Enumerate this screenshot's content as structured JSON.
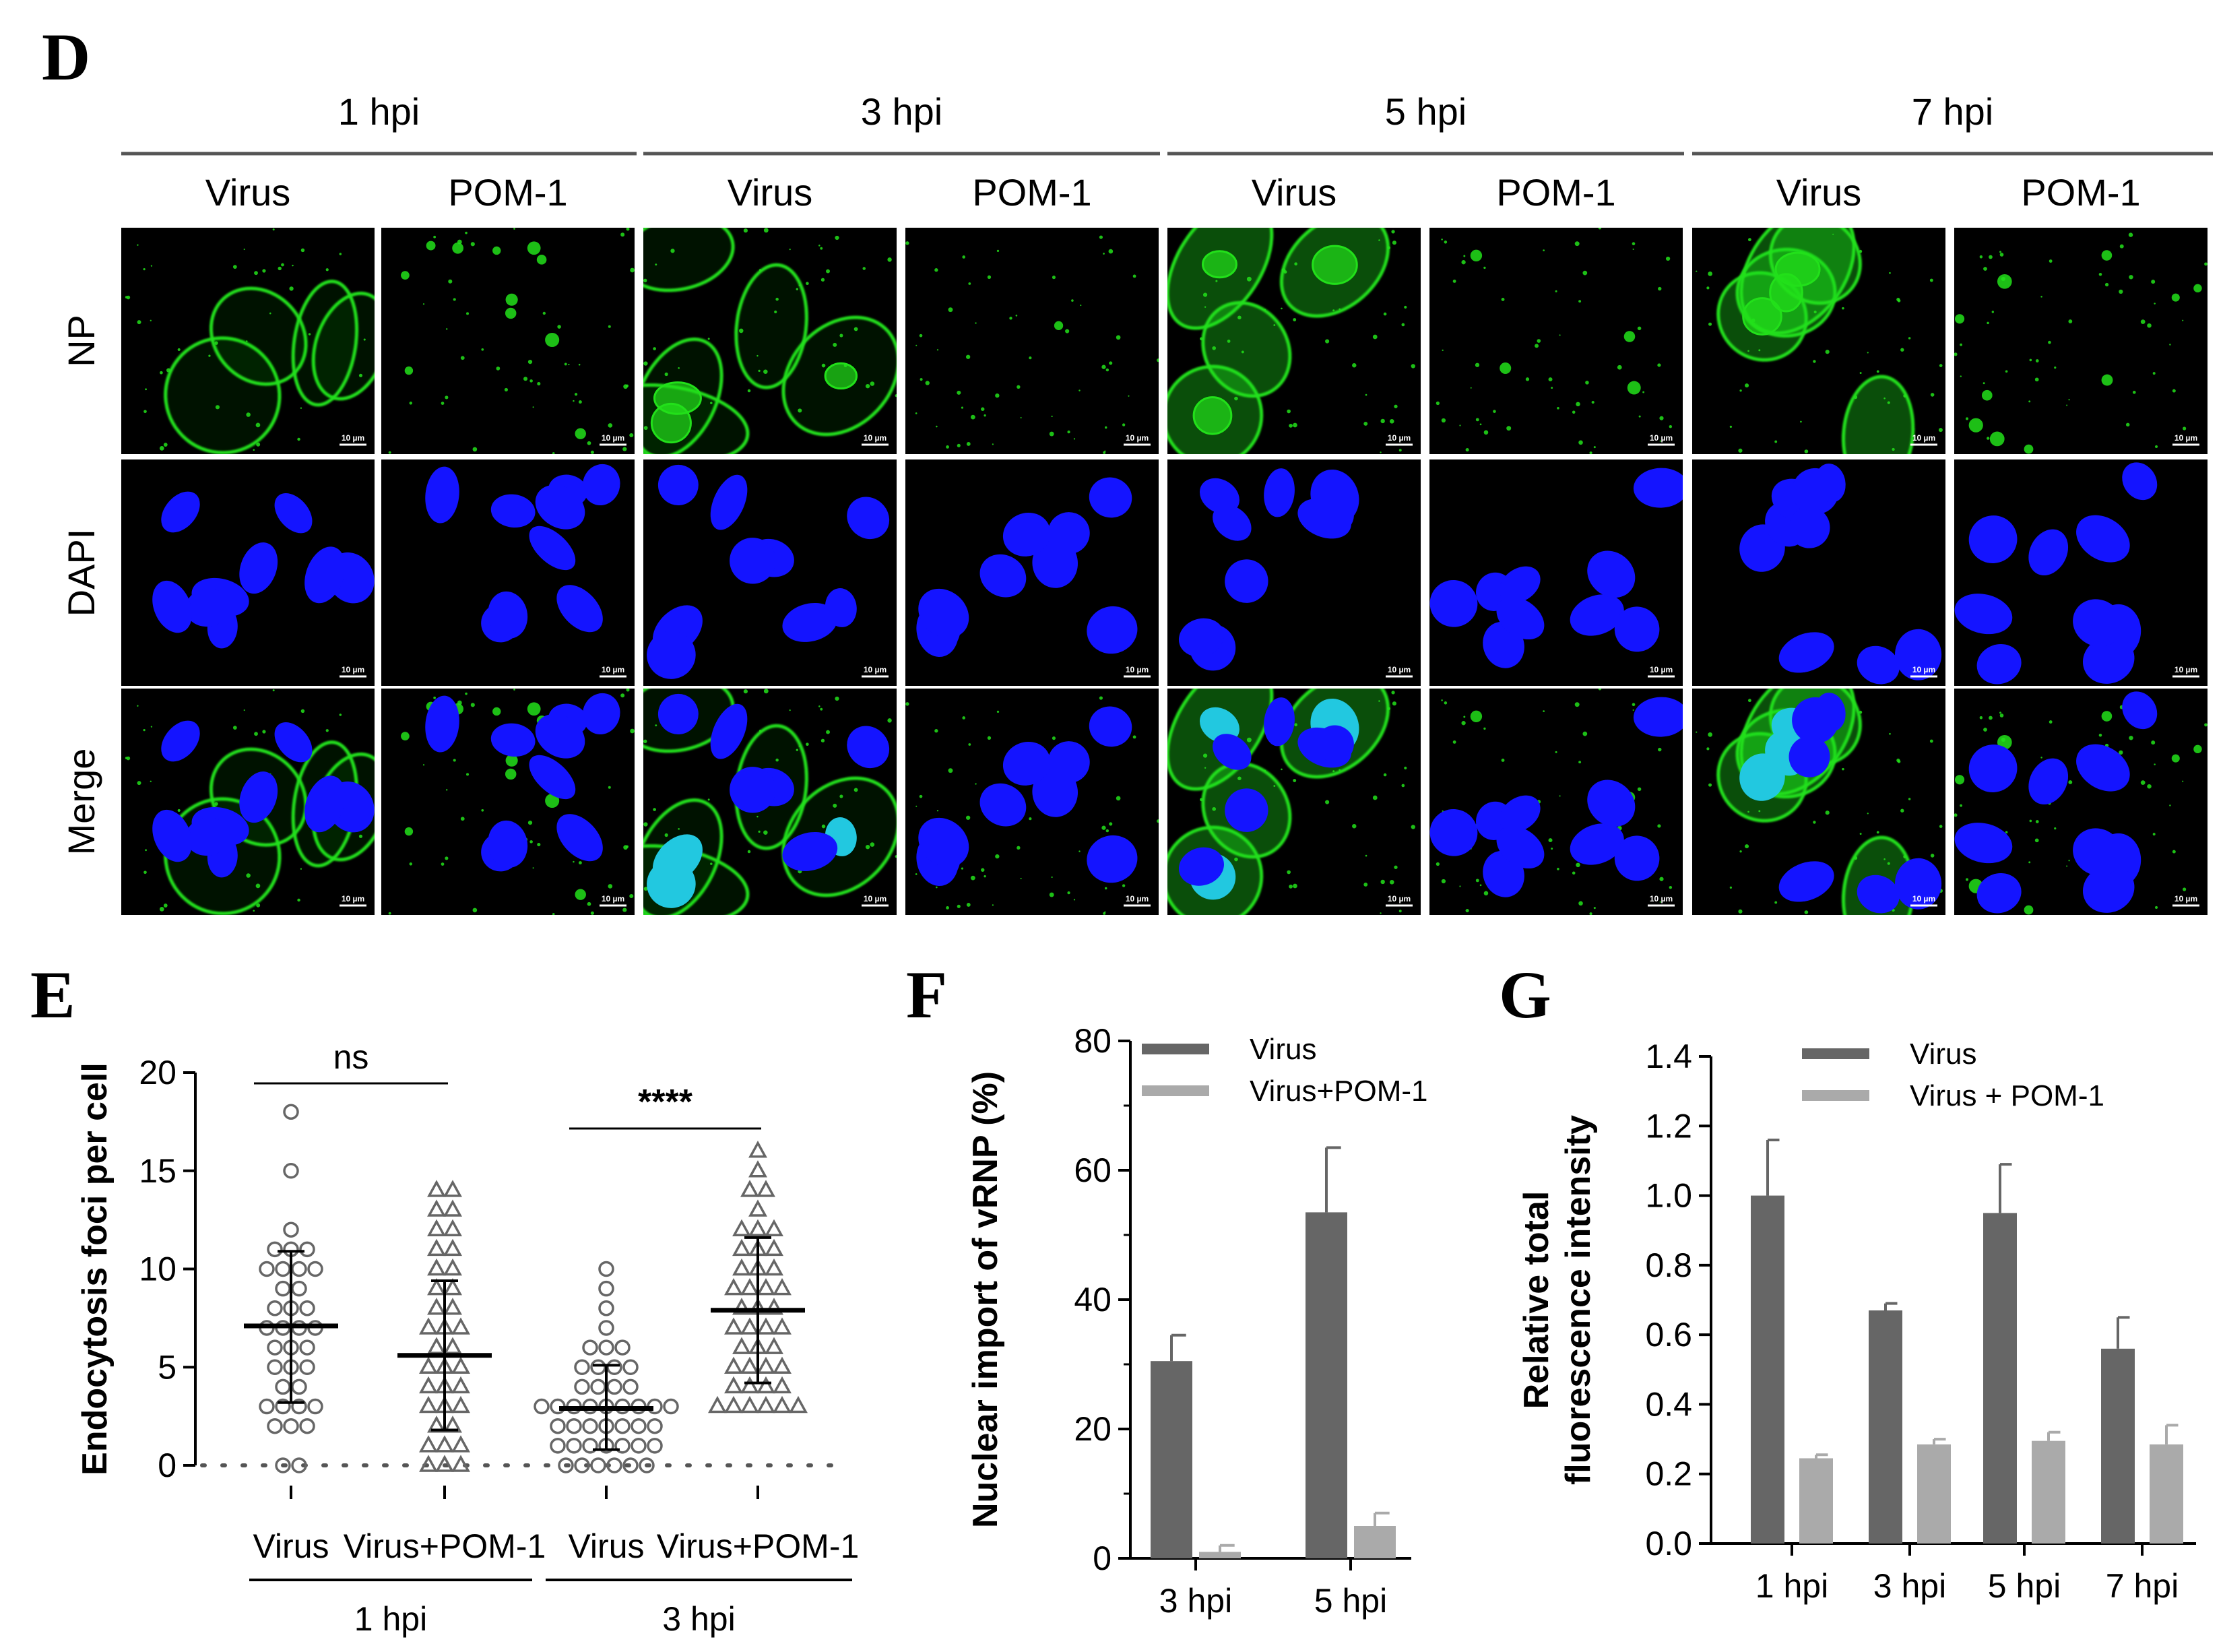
{
  "panels": {
    "D": "D",
    "E": "E",
    "F": "F",
    "G": "G"
  },
  "panel_d": {
    "time_points": [
      "1 hpi",
      "3 hpi",
      "5 hpi",
      "7 hpi"
    ],
    "conditions": [
      "Virus",
      "POM-1"
    ],
    "row_labels": [
      "NP",
      "DAPI",
      "Merge"
    ],
    "scale_bar_label": "10 µm",
    "colors": {
      "np": "#22e01a",
      "dapi": "#1414ff",
      "merge_overlap": "#22c8e0",
      "background": "#000000"
    }
  },
  "chart_data": [
    {
      "panel": "E",
      "type": "scatter",
      "ylabel": "Endocytosis foci per cell",
      "ylim": [
        0,
        20
      ],
      "yticks": [
        0,
        5,
        10,
        15,
        20
      ],
      "categories": [
        "Virus",
        "Virus+POM-1",
        "Virus",
        "Virus+POM-1"
      ],
      "group_labels": [
        "1 hpi",
        "3 hpi"
      ],
      "markers": [
        "circle",
        "triangle",
        "circle",
        "triangle"
      ],
      "series": [
        {
          "values": [
            18,
            15,
            12,
            11,
            11,
            11,
            10,
            10,
            10,
            10,
            9,
            9,
            8,
            8,
            8,
            7,
            7,
            7,
            7,
            6,
            6,
            6,
            5,
            5,
            5,
            4,
            4,
            3,
            3,
            3,
            3,
            2,
            2,
            2,
            0,
            0
          ],
          "mean": 7.1,
          "sd_upper": 10.9,
          "sd_lower": 3.2
        },
        {
          "values": [
            14,
            14,
            13,
            13,
            12,
            12,
            11,
            11,
            10,
            10,
            9,
            9,
            8,
            8,
            7,
            7,
            7,
            6,
            6,
            5,
            5,
            5,
            4,
            4,
            4,
            3,
            3,
            3,
            2,
            2,
            1,
            1,
            1,
            0,
            0,
            0
          ],
          "mean": 5.6,
          "sd_upper": 9.4,
          "sd_lower": 1.8
        },
        {
          "values": [
            10,
            9,
            8,
            7,
            6,
            6,
            6,
            5,
            5,
            5,
            5,
            4,
            4,
            4,
            4,
            3,
            3,
            3,
            3,
            3,
            3,
            3,
            3,
            3,
            2,
            2,
            2,
            2,
            2,
            2,
            2,
            1,
            1,
            1,
            1,
            1,
            1,
            1,
            0,
            0,
            0,
            0,
            0,
            0
          ],
          "mean": 2.9,
          "sd_upper": 5.1,
          "sd_lower": 0.8
        },
        {
          "values": [
            16,
            15,
            14,
            14,
            13,
            12,
            12,
            12,
            11,
            11,
            11,
            10,
            10,
            10,
            9,
            9,
            9,
            9,
            8,
            8,
            8,
            7,
            7,
            7,
            7,
            6,
            6,
            6,
            5,
            5,
            5,
            5,
            4,
            4,
            4,
            4,
            3,
            3,
            3,
            3,
            3,
            3
          ],
          "mean": 7.9,
          "sd_upper": 11.6,
          "sd_lower": 4.2
        }
      ],
      "annotations": [
        {
          "text": "ns",
          "between": [
            0,
            1
          ]
        },
        {
          "text": "****",
          "between": [
            2,
            3
          ]
        }
      ]
    },
    {
      "panel": "F",
      "type": "bar",
      "ylabel": "Nuclear import of vRNP (%)",
      "ylim": [
        0,
        80
      ],
      "yticks": [
        0,
        20,
        40,
        60,
        80
      ],
      "categories": [
        "3 hpi",
        "5 hpi"
      ],
      "series": [
        {
          "name": "Virus",
          "values": [
            30.5,
            53.5
          ],
          "errors": [
            4.0,
            10.0
          ],
          "color": "#666666"
        },
        {
          "name": "Virus+POM-1",
          "values": [
            1.0,
            5.0
          ],
          "errors": [
            1.0,
            2.0
          ],
          "color": "#aaaaaa"
        }
      ],
      "legend": "top-right"
    },
    {
      "panel": "G",
      "type": "bar",
      "ylabel": [
        "Relative total",
        "fluorescence intensity"
      ],
      "ylim": [
        0,
        1.4
      ],
      "yticks": [
        "0.0",
        "0.2",
        "0.4",
        "0.6",
        "0.8",
        "1.0",
        "1.2",
        "1.4"
      ],
      "categories": [
        "1 hpi",
        "3 hpi",
        "5 hpi",
        "7 hpi"
      ],
      "series": [
        {
          "name": "Virus",
          "values": [
            1.0,
            0.67,
            0.95,
            0.56
          ],
          "errors": [
            0.16,
            0.02,
            0.14,
            0.09
          ],
          "color": "#666666"
        },
        {
          "name": "Virus + POM-1",
          "values": [
            0.245,
            0.285,
            0.295,
            0.285
          ],
          "errors": [
            0.01,
            0.015,
            0.025,
            0.055
          ],
          "color": "#aaaaaa"
        }
      ],
      "legend": "top-right"
    }
  ]
}
